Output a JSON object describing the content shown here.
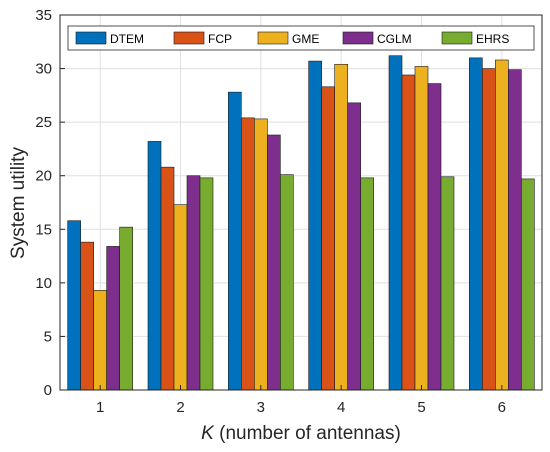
{
  "chart_data": {
    "type": "bar",
    "categories": [
      "1",
      "2",
      "3",
      "4",
      "5",
      "6"
    ],
    "series": [
      {
        "name": "DTEM",
        "color": "#0072BD",
        "values": [
          15.8,
          23.2,
          27.8,
          30.7,
          31.2,
          31.0
        ]
      },
      {
        "name": "FCP",
        "color": "#D95319",
        "values": [
          13.8,
          20.8,
          25.4,
          28.3,
          29.4,
          30.0
        ]
      },
      {
        "name": "GME",
        "color": "#EDB120",
        "values": [
          9.3,
          17.3,
          25.3,
          30.4,
          30.2,
          30.8
        ]
      },
      {
        "name": "CGLM",
        "color": "#7E2F8E",
        "values": [
          13.4,
          20.0,
          23.8,
          26.8,
          28.6,
          29.9
        ]
      },
      {
        "name": "EHRS",
        "color": "#77AC30",
        "values": [
          15.2,
          19.8,
          20.1,
          19.8,
          19.9,
          19.7
        ]
      }
    ],
    "xlabel_italic": "K",
    "xlabel_rest": " (number of antennas)",
    "ylabel": "System utility",
    "ylim": [
      0,
      35
    ],
    "yticks": [
      0,
      5,
      10,
      15,
      20,
      25,
      30,
      35
    ],
    "grid": true,
    "legend": "top, horizontal"
  }
}
